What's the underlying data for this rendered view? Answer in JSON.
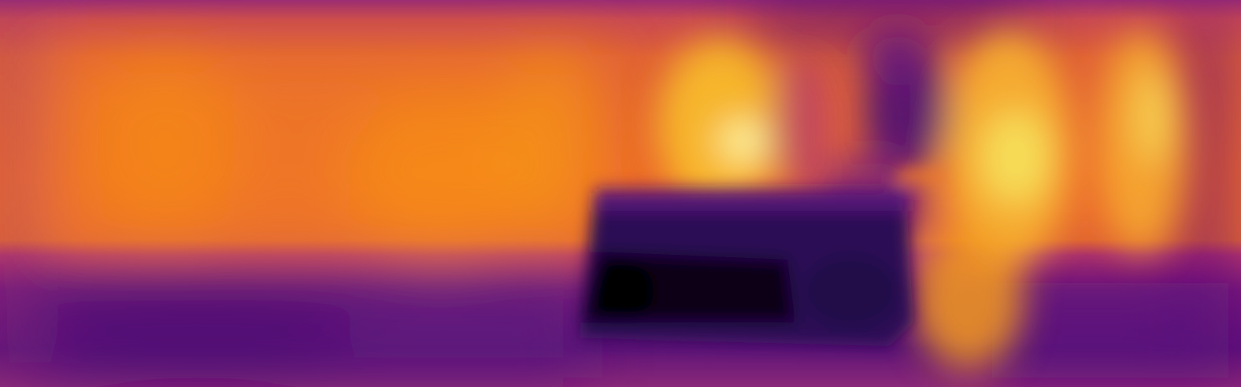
{
  "image": {
    "kind": "depth-heatmap",
    "colormap": "inferno",
    "colormap_stops": [
      "#000004",
      "#2a0a5e",
      "#5a117a",
      "#8e2a78",
      "#c43c5c",
      "#e9622d",
      "#f88d13",
      "#f9c32b",
      "#fcffa4"
    ],
    "visible_text": []
  }
}
